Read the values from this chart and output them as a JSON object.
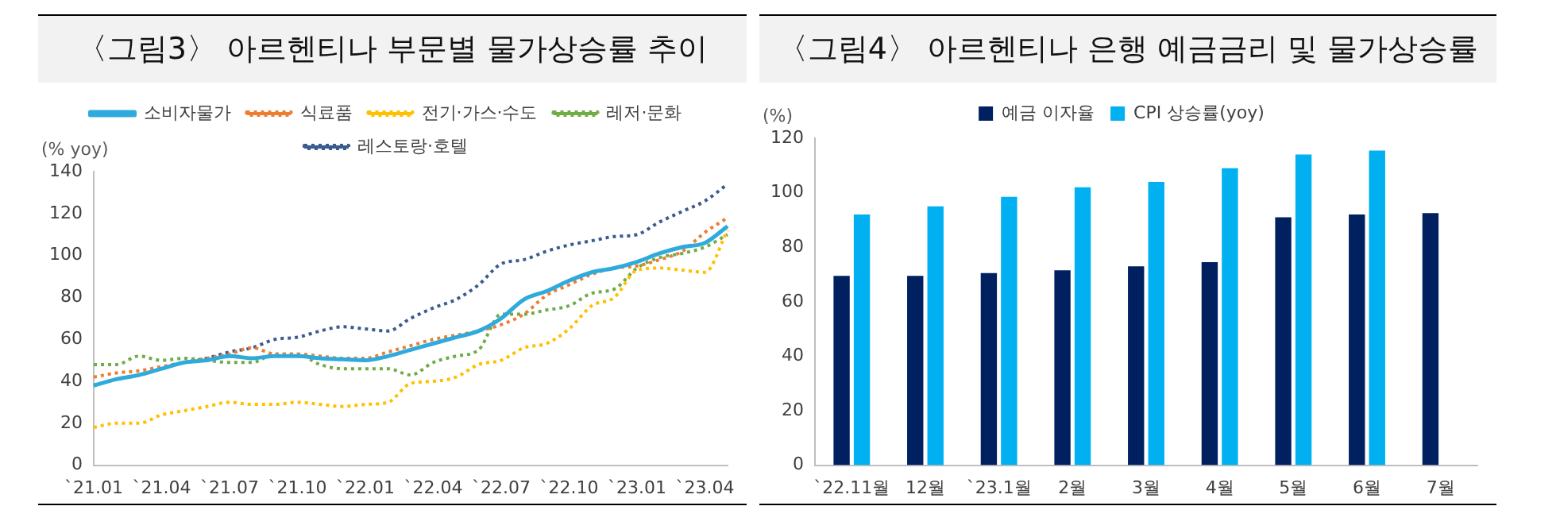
{
  "chart_data": [
    {
      "type": "line",
      "title": "〈그림3〉 아르헨티나 부문별 물가상승률 추이",
      "ylabel": "(% yoy)",
      "categories": [
        "`21.01",
        null,
        null,
        "`21.04",
        null,
        null,
        "`21.07",
        null,
        null,
        "`21.10",
        null,
        null,
        "`22.01",
        null,
        null,
        "`22.04",
        null,
        null,
        "`22.07",
        null,
        null,
        "`22.10",
        null,
        null,
        "`23.01",
        null,
        null,
        "`23.04",
        null
      ],
      "series": [
        {
          "name": "소비자물가",
          "color": "#2eaadc",
          "line_style": "solid",
          "values": [
            38,
            41,
            43,
            46,
            49,
            50,
            52,
            51,
            52,
            52,
            51,
            50.5,
            50,
            52,
            55,
            58,
            61,
            64,
            70,
            79,
            83,
            88,
            92,
            94,
            97,
            101,
            104,
            106,
            114
          ]
        },
        {
          "name": "식료품",
          "color": "#ed7d31",
          "line_style": "dotted",
          "values": [
            42,
            44,
            45,
            47,
            49,
            51,
            53,
            56,
            53,
            53,
            52,
            51,
            51,
            54,
            57,
            60,
            62,
            64,
            67,
            72,
            81,
            86,
            91,
            94,
            95,
            98,
            102,
            111,
            118
          ]
        },
        {
          "name": "전기·가스·수도",
          "color": "#ffc000",
          "line_style": "dotted",
          "values": [
            18,
            20,
            20,
            24,
            26,
            28,
            30,
            29,
            29,
            30,
            29,
            28,
            29,
            30,
            39,
            40,
            42,
            48,
            50,
            56,
            58,
            65,
            76,
            80,
            93,
            94,
            93,
            92,
            112
          ]
        },
        {
          "name": "레저·문화",
          "color": "#70ad47",
          "line_style": "dotted",
          "values": [
            48,
            48,
            52,
            50,
            51,
            50,
            49,
            49,
            53,
            53,
            48,
            46,
            46,
            46,
            43,
            49,
            52,
            55,
            72,
            72,
            74,
            76,
            82,
            84,
            94,
            99,
            101,
            104,
            110
          ]
        },
        {
          "name": "레스토랑·호텔",
          "color": "#3b5b8f",
          "line_style": "dotted",
          "values": [
            38,
            41,
            43,
            46,
            49,
            51,
            54,
            56,
            60,
            61,
            64,
            66,
            65,
            64,
            70,
            75,
            79,
            86,
            96,
            98,
            102,
            105,
            107,
            109,
            110,
            116,
            121,
            126,
            134
          ]
        }
      ],
      "ylim": [
        0,
        140
      ],
      "yticks": [
        0,
        20,
        40,
        60,
        80,
        100,
        120,
        140
      ],
      "grid": false,
      "legend": "top",
      "marker": "none"
    },
    {
      "type": "bar",
      "title": "〈그림4〉 아르헨티나 은행 예금금리 및 물가상승률",
      "ylabel": "(%)",
      "categories": [
        "`22.11월",
        "12월",
        "`23.1월",
        "2월",
        "3월",
        "4월",
        "5월",
        "6월",
        "7월"
      ],
      "series": [
        {
          "name": "예금 이자율",
          "color": "#002060",
          "values": [
            69.5,
            69.5,
            70.5,
            71.5,
            73,
            74.5,
            91,
            92,
            92.5
          ]
        },
        {
          "name": "CPI 상승률(yoy)",
          "color": "#00b0f0",
          "values": [
            92,
            95,
            98.5,
            102,
            104,
            109,
            114,
            115.5,
            null
          ]
        }
      ],
      "ylim": [
        0,
        120
      ],
      "yticks": [
        0,
        20,
        40,
        60,
        80,
        100,
        120
      ],
      "grid": false,
      "legend": "top"
    }
  ]
}
